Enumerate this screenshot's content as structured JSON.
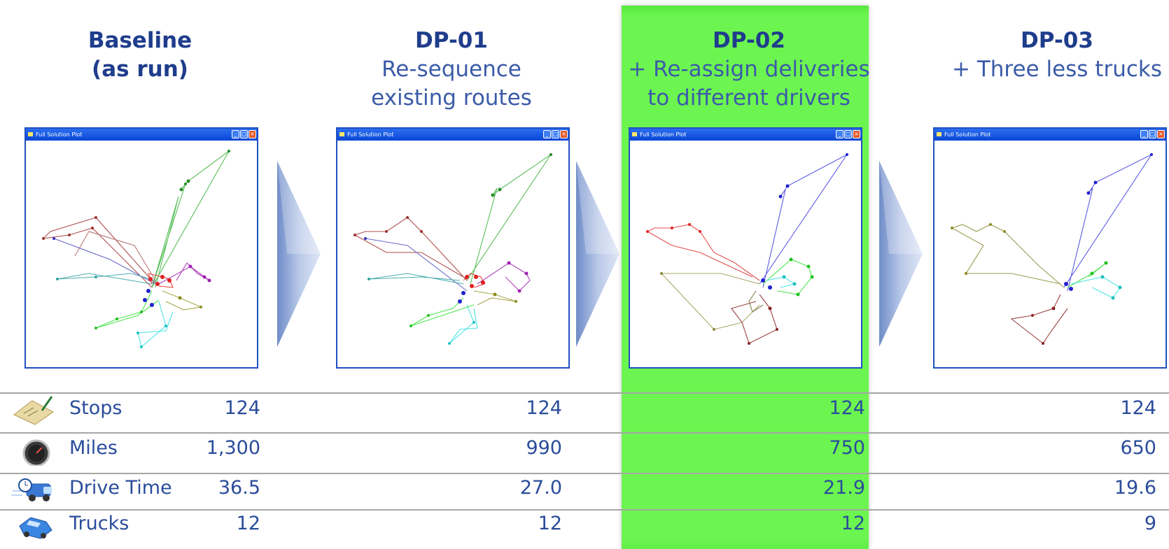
{
  "colors": {
    "highlight": "#6cf550",
    "title": "#1f3d8c",
    "subtitle": "#3b5ba8",
    "text": "#2a4c9a"
  },
  "columns": [
    {
      "title": "Baseline",
      "subtitle_lines": [
        "(as run)"
      ],
      "window_title": "Full Solution Plot"
    },
    {
      "title": "DP-01",
      "subtitle_lines": [
        "Re-sequence",
        "existing routes"
      ],
      "window_title": "Full Solution Plot"
    },
    {
      "title": "DP-02",
      "subtitle_lines": [
        "+ Re-assign deliveries",
        "to different drivers"
      ],
      "window_title": "Full Solution Plot",
      "highlighted": true
    },
    {
      "title": "DP-03",
      "subtitle_lines": [
        "+ Three less trucks"
      ],
      "window_title": "Full Solution Plot"
    }
  ],
  "metrics": [
    {
      "label": "Stops",
      "icon": "clipboard-checklist-icon",
      "values": [
        "124",
        "124",
        "124",
        "124"
      ]
    },
    {
      "label": "Miles",
      "icon": "speedometer-icon",
      "values": [
        "1,300",
        "990",
        "750",
        "650"
      ]
    },
    {
      "label": "Drive Time",
      "icon": "delivery-truck-clock-icon",
      "values": [
        "36.5",
        "27.0",
        "21.9",
        "19.6"
      ]
    },
    {
      "label": "Trucks",
      "icon": "blue-car-icon",
      "values": [
        "12",
        "12",
        "12",
        "9"
      ]
    }
  ]
}
